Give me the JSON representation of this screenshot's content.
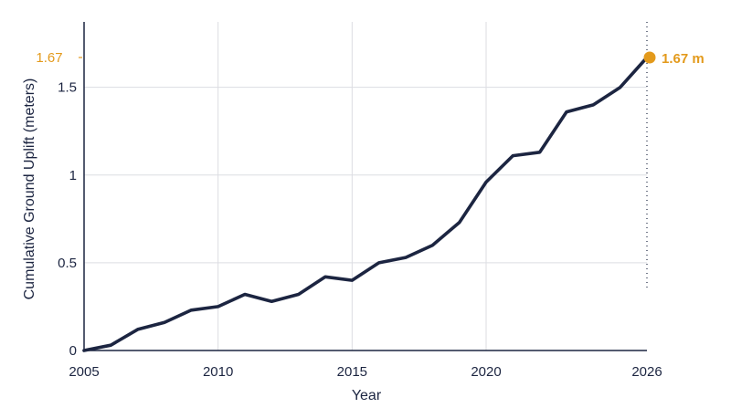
{
  "chart_data": {
    "type": "line",
    "title": "",
    "xlabel": "Year",
    "ylabel": "Cumulative Ground Uplift (meters)",
    "xlim": [
      2005,
      2026
    ],
    "ylim": [
      0,
      1.67
    ],
    "x_ticks": [
      "2005",
      "2010",
      "2015",
      "2020",
      "2026"
    ],
    "y_ticks": [
      "0",
      "0.5",
      "1",
      "1.5"
    ],
    "highlight_tick_label": "1.67",
    "grid": true,
    "legend": "none",
    "series": [
      {
        "x": [
          2005,
          2006,
          2007,
          2008,
          2009,
          2010,
          2011,
          2012,
          2013,
          2014,
          2015,
          2016,
          2017,
          2018,
          2019,
          2020,
          2021,
          2022,
          2023,
          2024,
          2025,
          2026
        ],
        "values": [
          0.0,
          0.03,
          0.12,
          0.16,
          0.23,
          0.25,
          0.32,
          0.28,
          0.32,
          0.42,
          0.4,
          0.5,
          0.53,
          0.6,
          0.73,
          0.96,
          1.11,
          1.13,
          1.36,
          1.4,
          1.5,
          1.67
        ],
        "color": "#1c2541"
      }
    ],
    "end_point_label": "1.67 m",
    "accent_color": "#e39a1c",
    "line_color": "#1c2541",
    "grid_color": "#dcdde2"
  }
}
